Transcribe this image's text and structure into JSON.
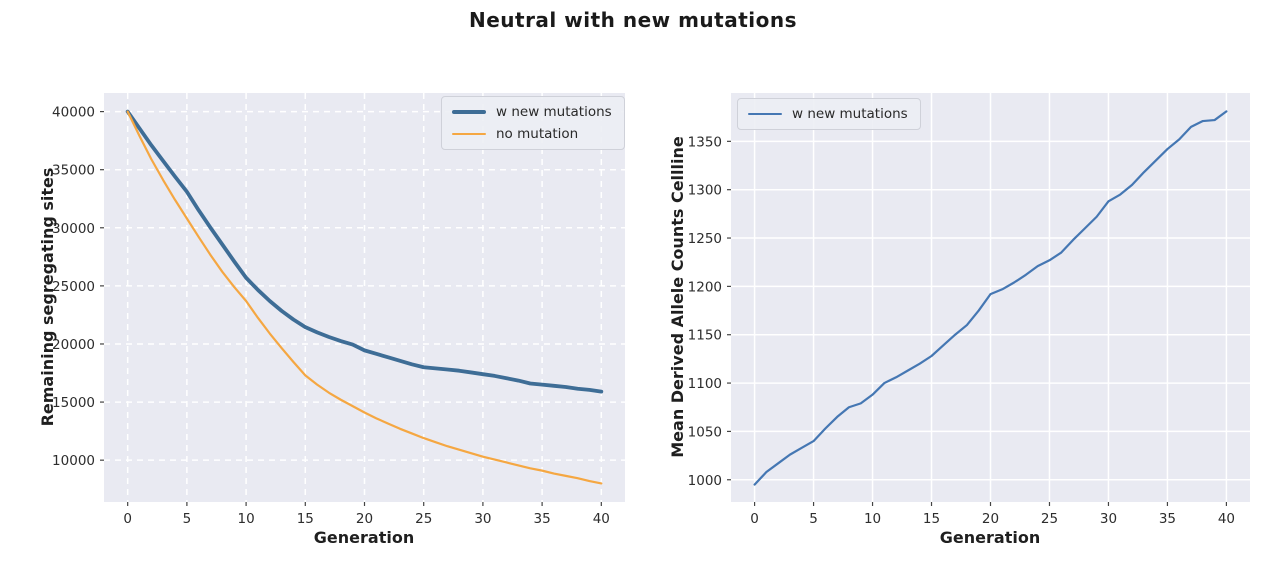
{
  "figure": {
    "title": "Neutral with new mutations",
    "background": "#ffffff",
    "axes_background": "#e9eaf2",
    "grid_color": "#ffffff",
    "tick_color": "#444444",
    "tick_label_color": "#2d2d2d",
    "label_color": "#1f1f1f"
  },
  "chart_data": [
    {
      "type": "line",
      "xlabel": "Generation",
      "ylabel": "Remaining segregating sites",
      "xlim": [
        -2,
        42
      ],
      "ylim": [
        6400,
        41600
      ],
      "xticks": [
        0,
        5,
        10,
        15,
        20,
        25,
        30,
        35,
        40
      ],
      "yticks": [
        10000,
        15000,
        20000,
        25000,
        30000,
        35000,
        40000
      ],
      "grid": "dashed",
      "legend_position": "upper-right",
      "x": [
        0,
        1,
        2,
        3,
        4,
        5,
        6,
        7,
        8,
        9,
        10,
        11,
        12,
        13,
        14,
        15,
        16,
        17,
        18,
        19,
        20,
        21,
        22,
        23,
        24,
        25,
        26,
        27,
        28,
        29,
        30,
        31,
        32,
        33,
        34,
        35,
        36,
        37,
        38,
        39,
        40
      ],
      "series": [
        {
          "name": "w new mutations",
          "color": "#3e6d96",
          "width": 3.8,
          "values": [
            40000,
            38550,
            37100,
            35750,
            34400,
            33100,
            31500,
            30000,
            28550,
            27100,
            25700,
            24650,
            23700,
            22850,
            22100,
            21450,
            21000,
            20600,
            20250,
            19950,
            19450,
            19150,
            18850,
            18550,
            18250,
            18000,
            17900,
            17800,
            17700,
            17550,
            17400,
            17250,
            17050,
            16850,
            16600,
            16500,
            16400,
            16300,
            16150,
            16050,
            15900
          ]
        },
        {
          "name": "no mutation",
          "color": "#f5a742",
          "width": 2.2,
          "values": [
            40000,
            37900,
            35900,
            34100,
            32400,
            30800,
            29200,
            27650,
            26200,
            24900,
            23700,
            22250,
            20900,
            19650,
            18450,
            17300,
            16500,
            15800,
            15200,
            14650,
            14100,
            13600,
            13150,
            12700,
            12300,
            11900,
            11550,
            11200,
            10900,
            10600,
            10300,
            10050,
            9800,
            9550,
            9300,
            9100,
            8850,
            8650,
            8450,
            8200,
            8000
          ]
        }
      ]
    },
    {
      "type": "line",
      "xlabel": "Generation",
      "ylabel": "Mean Derived Allele Counts Cellline",
      "xlim": [
        -2,
        42
      ],
      "ylim": [
        977,
        1400
      ],
      "xticks": [
        0,
        5,
        10,
        15,
        20,
        25,
        30,
        35,
        40
      ],
      "yticks": [
        1000,
        1050,
        1100,
        1150,
        1200,
        1250,
        1300,
        1350
      ],
      "grid": "solid",
      "legend_position": "upper-left",
      "x": [
        0,
        1,
        2,
        3,
        4,
        5,
        6,
        7,
        8,
        9,
        10,
        11,
        12,
        13,
        14,
        15,
        16,
        17,
        18,
        19,
        20,
        21,
        22,
        23,
        24,
        25,
        26,
        27,
        28,
        29,
        30,
        31,
        32,
        33,
        34,
        35,
        36,
        37,
        38,
        39,
        40
      ],
      "series": [
        {
          "name": "w new mutations",
          "color": "#4577b3",
          "width": 2.2,
          "values": [
            995,
            1008,
            1017,
            1026,
            1033,
            1040,
            1053,
            1065,
            1075,
            1079,
            1088,
            1100,
            1106,
            1113,
            1120,
            1128,
            1139,
            1150,
            1160,
            1175,
            1192,
            1197,
            1204,
            1212,
            1221,
            1227,
            1235,
            1248,
            1260,
            1272,
            1288,
            1295,
            1305,
            1318,
            1330,
            1342,
            1352,
            1365,
            1371,
            1372,
            1381
          ]
        }
      ]
    }
  ]
}
